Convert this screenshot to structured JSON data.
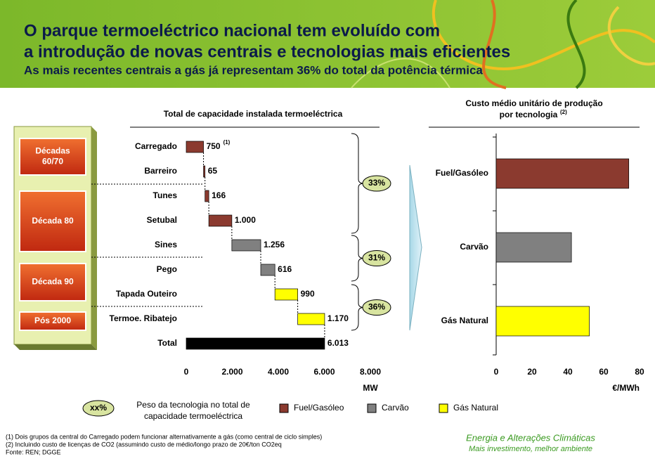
{
  "header": {
    "title": [
      "O parque termoeléctrico nacional tem evoluído com",
      "a introdução de novas centrais e tecnologias mais eficientes"
    ],
    "subtitle": "As mais recentes centrais a gás já representam 36% do total da potência térmica"
  },
  "chart_data": [
    {
      "type": "waterfall",
      "title": "Total de capacidade instalada termoeléctrica",
      "categories": [
        "Carregado",
        "Barreiro",
        "Tunes",
        "Setubal",
        "Sines",
        "Pego",
        "Tapada Outeiro",
        "Termoe. Ribatejo",
        "Total"
      ],
      "values": [
        750,
        65,
        166,
        1000,
        1256,
        616,
        990,
        1170,
        6013
      ],
      "value_labels": [
        "750",
        "65",
        "166",
        "1.000",
        "1.256",
        "616",
        "990",
        "1.170",
        "6.013"
      ],
      "colors": [
        "#8b3a2f",
        "#8b3a2f",
        "#8b3a2f",
        "#8b3a2f",
        "#808080",
        "#808080",
        "#ffff00",
        "#ffff00",
        "#000000"
      ],
      "annotation": "(1)",
      "xlim": [
        0,
        8000
      ],
      "xticks": [
        0,
        {
          "value": 2000,
          "label": "2.000"
        },
        {
          "value": 4000,
          "label": "4.000"
        },
        {
          "value": 6000,
          "label": "6.000"
        },
        {
          "value": 8000,
          "label": "8.000"
        }
      ],
      "xlabel": "MW",
      "periods": [
        [
          "Décadas",
          "60/70"
        ],
        [
          "Década 80"
        ],
        [
          "Década 90"
        ],
        [
          "Pós 2000"
        ]
      ],
      "shares": {
        "values": [
          33,
          31,
          36
        ],
        "value_labels": [
          "33%",
          "31%",
          "36%"
        ]
      },
      "legend": [
        {
          "name": "Fuel/Gasóleo",
          "color": "#8b3a2f"
        },
        {
          "name": "Carvão",
          "color": "#808080"
        },
        {
          "name": "Gás Natural",
          "color": "#ffff00"
        }
      ],
      "legend_note": {
        "symbol": "xx%",
        "text": [
          "Peso da tecnologia no total de",
          "capacidade termoeléctrica"
        ]
      }
    },
    {
      "type": "hbar",
      "title": [
        "Custo médio unitário de produção",
        "por tecnologia"
      ],
      "title_note": "(2)",
      "categories": [
        "Fuel/Gasóleo",
        "Carvão",
        "Gás Natural"
      ],
      "values": [
        74,
        42,
        52
      ],
      "colors": [
        "#8b3a2f",
        "#808080",
        "#ffff00"
      ],
      "xlim": [
        0,
        80
      ],
      "xticks": [
        0,
        20,
        40,
        60,
        80
      ],
      "xlabel": "€/MWh"
    }
  ],
  "footnotes": [
    "(1) Dois grupos da central do Carregado podem funcionar alternativamente a gás (como central de ciclo simples)",
    "(2) Incluindo custo de licenças de CO2 (assumindo custo de médio/longo prazo de 20€/ton CO2eq",
    "Fonte: REN; DGGE"
  ],
  "footer": [
    "Energia e Alterações Climáticas",
    "Mais investimento, melhor ambiente"
  ]
}
